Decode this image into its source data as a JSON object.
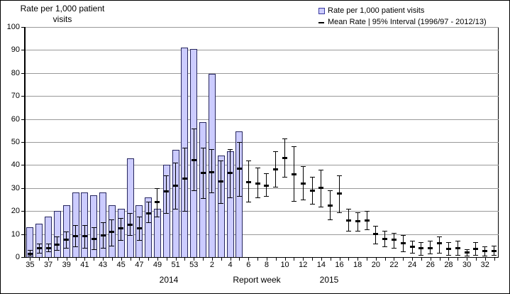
{
  "figure": {
    "title_line1": "Rate per 1,000  patient",
    "title_line2": "visits",
    "x_axis_title": "Report week",
    "year_left": "2014",
    "year_right": "2015"
  },
  "legend": {
    "items": [
      {
        "label": "Rate per 1,000 patient visits",
        "marker": "bar-swatch"
      },
      {
        "label": "Mean Rate | 95% Interval (1996/97 - 2012/13)",
        "marker": "mean-dash"
      }
    ]
  },
  "colors": {
    "bar_fill": "#ccccff",
    "bar_border": "#26265e",
    "gridline": "#999999",
    "axis": "#000000",
    "error_bar": "#000000"
  },
  "chart_data": {
    "type": "bar",
    "title": "Rate per 1,000 patient visits",
    "xlabel": "Report week",
    "ylabel": "Rate per 1,000 patient visits",
    "ylim": [
      0,
      100
    ],
    "y_ticks": [
      0,
      10,
      20,
      30,
      40,
      50,
      60,
      70,
      80,
      90,
      100
    ],
    "grid": true,
    "legend_position": "top-right",
    "year_labels": [
      "2014",
      "2015"
    ],
    "categories": [
      "35",
      "36",
      "37",
      "38",
      "39",
      "40",
      "41",
      "42",
      "43",
      "44",
      "45",
      "46",
      "47",
      "48",
      "49",
      "50",
      "51",
      "52",
      "53",
      "1",
      "2",
      "3",
      "4",
      "5",
      "6",
      "7",
      "8",
      "9",
      "10",
      "11",
      "12",
      "13",
      "14",
      "15",
      "16",
      "17",
      "18",
      "19",
      "20",
      "21",
      "22",
      "23",
      "24",
      "25",
      "26",
      "27",
      "28",
      "29",
      "30",
      "31",
      "32",
      "33"
    ],
    "x_tick_labels": [
      "35",
      "37",
      "39",
      "41",
      "43",
      "45",
      "47",
      "49",
      "51",
      "53",
      "2",
      "4",
      "6",
      "8",
      "10",
      "12",
      "14",
      "16",
      "18",
      "20",
      "22",
      "24",
      "26",
      "28",
      "30",
      "32"
    ],
    "series": [
      {
        "name": "Rate per 1,000 patient visits",
        "render": "bar",
        "values": [
          13,
          14.5,
          17.5,
          20,
          22.5,
          28,
          28,
          27,
          28,
          22.5,
          21,
          43,
          22.5,
          26,
          21,
          40,
          46.5,
          91,
          90.5,
          58.5,
          79.5,
          44,
          46,
          54.5,
          null,
          null,
          null,
          null,
          null,
          null,
          null,
          null,
          null,
          null,
          null,
          null,
          null,
          null,
          null,
          null,
          null,
          null,
          null,
          null,
          null,
          null,
          null,
          null,
          null,
          null,
          null,
          null
        ]
      },
      {
        "name": "Mean Rate (1996/97 - 2012/13)",
        "render": "errorbar-mean",
        "values": [
          1.5,
          4,
          4,
          5.5,
          7.5,
          9,
          9,
          8,
          9.5,
          11,
          12.5,
          14,
          12.5,
          19,
          24,
          28.5,
          31,
          34,
          42,
          36.5,
          37,
          33,
          36.5,
          38.5,
          32.5,
          32,
          31,
          38,
          43,
          36,
          32,
          29,
          30,
          22.5,
          27.5,
          16,
          15.5,
          16,
          10,
          8,
          7.5,
          6,
          4.5,
          4,
          4,
          6,
          3.5,
          4,
          2,
          3.5,
          2.5,
          2.5
        ]
      },
      {
        "name": "95% Interval lower bound",
        "render": "errorbar-low",
        "values": [
          0.5,
          2,
          2.5,
          3,
          4,
          4.5,
          4,
          3.5,
          4,
          5,
          7.5,
          9.5,
          7.5,
          15,
          17.5,
          19,
          21,
          20,
          29,
          25.5,
          28,
          23.5,
          26,
          26.5,
          24,
          26,
          26.5,
          30.5,
          35,
          24.5,
          25,
          23,
          22,
          16.5,
          19.5,
          11.5,
          11.5,
          12,
          6,
          4.5,
          4,
          2.5,
          2,
          1,
          1.5,
          2,
          1,
          1,
          0.5,
          1,
          0.5,
          1
        ]
      },
      {
        "name": "95% Interval upper bound",
        "render": "errorbar-high",
        "values": [
          3,
          6,
          6,
          9,
          11,
          14,
          14,
          13,
          15,
          16.5,
          17,
          19,
          17.5,
          24,
          30,
          35.5,
          41,
          47.5,
          56,
          47.5,
          47,
          42,
          47,
          50,
          42,
          39,
          36.5,
          46,
          51.5,
          48,
          39.5,
          35,
          38,
          29,
          35.5,
          21,
          19.5,
          20,
          13.5,
          11.5,
          10.5,
          9.5,
          7,
          6.5,
          7,
          9,
          6.5,
          7,
          3.5,
          6.5,
          4.5,
          5
        ]
      }
    ]
  }
}
